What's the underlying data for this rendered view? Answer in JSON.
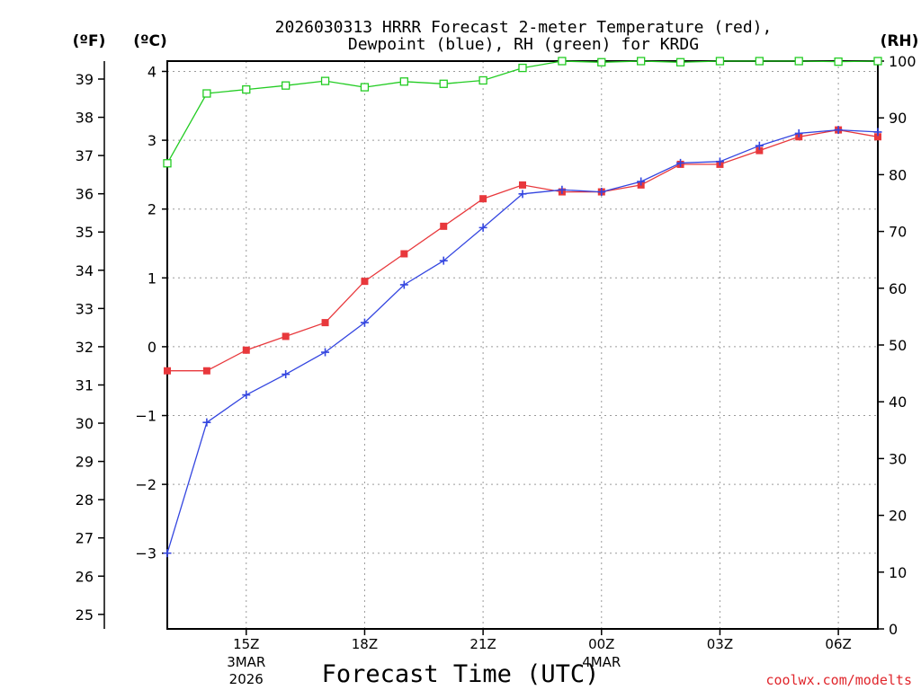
{
  "chart_data": {
    "type": "line",
    "title": [
      "2026030313 HRRR Forecast 2-meter Temperature (red),",
      "Dewpoint (blue), RH (green) for KRDG"
    ],
    "xlabel": "Forecast Time (UTC)",
    "credit": "coolwx.com/modelts",
    "units": {
      "fahrenheit": "(ºF)",
      "celsius": "(ºC)",
      "rh": "(RH)"
    },
    "x": [
      13,
      14,
      15,
      16,
      17,
      18,
      19,
      20,
      21,
      22,
      23,
      24,
      25,
      26,
      27,
      28,
      29,
      30,
      31
    ],
    "xlim": [
      13,
      31
    ],
    "x_ticks": [
      {
        "x": 15,
        "label": "15Z",
        "sub": [
          "3MAR",
          "2026"
        ]
      },
      {
        "x": 18,
        "label": "18Z",
        "sub": []
      },
      {
        "x": 21,
        "label": "21Z",
        "sub": []
      },
      {
        "x": 24,
        "label": "00Z",
        "sub": [
          "4MAR"
        ]
      },
      {
        "x": 27,
        "label": "03Z",
        "sub": []
      },
      {
        "x": 30,
        "label": "06Z",
        "sub": []
      }
    ],
    "celsius_axis": {
      "ylim": [
        -4.1,
        4.15
      ],
      "ticks": [
        -3,
        -2,
        -1,
        0,
        1,
        2,
        3,
        4
      ]
    },
    "fahrenheit_axis": {
      "ticks": [
        25,
        26,
        27,
        28,
        29,
        30,
        31,
        32,
        33,
        34,
        35,
        36,
        37,
        38,
        39
      ]
    },
    "rh_axis": {
      "ylim": [
        0,
        100
      ],
      "ticks": [
        0,
        10,
        20,
        30,
        40,
        50,
        60,
        70,
        80,
        90,
        100
      ]
    },
    "series": [
      {
        "name": "Temperature",
        "color": "#e8383c",
        "marker": "filled-square",
        "axis": "celsius",
        "values": [
          -0.35,
          -0.35,
          -0.05,
          0.15,
          0.35,
          0.95,
          1.35,
          1.75,
          2.15,
          2.35,
          2.25,
          2.25,
          2.35,
          2.65,
          2.65,
          2.85,
          3.05,
          3.15,
          3.05
        ]
      },
      {
        "name": "Dewpoint",
        "color": "#3446e0",
        "marker": "plus",
        "axis": "celsius",
        "values": [
          -3.0,
          -1.1,
          -0.7,
          -0.4,
          -0.08,
          0.35,
          0.9,
          1.25,
          1.73,
          2.22,
          2.28,
          2.25,
          2.4,
          2.67,
          2.69,
          2.92,
          3.1,
          3.15,
          3.12
        ]
      },
      {
        "name": "RH",
        "color": "#22cc22",
        "marker": "open-square",
        "axis": "rh",
        "values": [
          82,
          94.3,
          95,
          95.7,
          96.5,
          95.4,
          96.4,
          96,
          96.6,
          98.8,
          100,
          99.8,
          100,
          99.8,
          100,
          100,
          100,
          99.9,
          100
        ]
      }
    ]
  }
}
